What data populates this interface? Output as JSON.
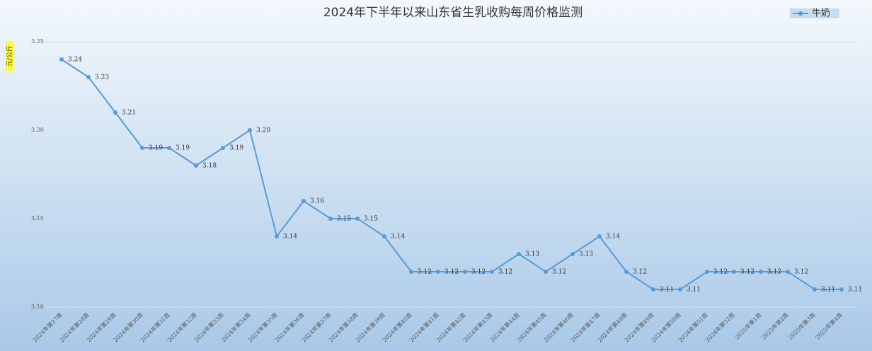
{
  "chart_data": {
    "type": "line",
    "title": "2024年下半年以来山东省生乳收购每周价格监测",
    "y_label": "元/公斤",
    "categories": [
      "2024年第27周",
      "2024年第28周",
      "2024年第29周",
      "2024年第30周",
      "2024年第31周",
      "2024年第32周",
      "2024年第33周",
      "2024年第34周",
      "2024年第35周",
      "2024年第36周",
      "2024年第37周",
      "2024年第38周",
      "2024年第39周",
      "2024年第40周",
      "2024年第41周",
      "2024年第42周",
      "2024年第43周",
      "2024年第44周",
      "2024年第45周",
      "2024年第46周",
      "2024年第47周",
      "2024年第48周",
      "2024年第49周",
      "2024年第50周",
      "2024年第51周",
      "2024年第52周",
      "2025年第1周",
      "2025年第2周",
      "2025年第3周",
      "2025年第4周"
    ],
    "series": [
      {
        "name": "牛奶",
        "color": "#5b9bd5",
        "values": [
          3.24,
          3.23,
          3.21,
          3.19,
          3.19,
          3.18,
          3.19,
          3.2,
          3.14,
          3.16,
          3.15,
          3.15,
          3.14,
          3.12,
          3.12,
          3.12,
          3.12,
          3.13,
          3.12,
          3.13,
          3.14,
          3.12,
          3.11,
          3.11,
          3.12,
          3.12,
          3.12,
          3.12,
          3.11,
          3.11
        ],
        "value_labels": [
          "3.24",
          "3.23",
          "3.21",
          "3.19",
          "3.19",
          "3.18",
          "3.19",
          "3.20",
          "3.14",
          "3.16",
          "3.15",
          "3.15",
          "3.14",
          "3.12",
          "3.12",
          "3.12",
          "3.12",
          "3.13",
          "3.12",
          "3.13",
          "3.14",
          "3.12",
          "3.11",
          "3.11",
          "3.12",
          "3.12",
          "3.12",
          "3.12",
          "3.11",
          "3.11"
        ]
      }
    ],
    "ylim": [
      3.1,
      3.25
    ],
    "yticks": [
      {
        "value": 3.1,
        "label": "3.10"
      },
      3.15,
      {
        "value": 3.2,
        "label": "3.20"
      },
      3.25
    ],
    "grid": true,
    "legend": "top-right"
  }
}
